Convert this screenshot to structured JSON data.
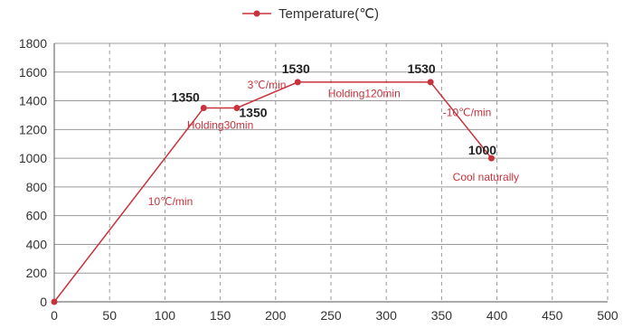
{
  "chart_data": {
    "type": "line",
    "title": "",
    "xlabel": "",
    "ylabel": "",
    "xlim": [
      0,
      500
    ],
    "ylim": [
      0,
      1800
    ],
    "xticks": [
      0,
      50,
      100,
      150,
      200,
      250,
      300,
      350,
      400,
      450,
      500
    ],
    "xtick_labels": [
      "0",
      "50",
      "100",
      "150",
      "200",
      "250",
      "300",
      "350",
      "400",
      "450",
      "500"
    ],
    "yticks": [
      0,
      200,
      400,
      600,
      800,
      1000,
      1200,
      1400,
      1600,
      1800
    ],
    "ytick_labels": [
      "0",
      "200",
      "400",
      "600",
      "800",
      "1000",
      "1200",
      "1400",
      "1600",
      "1800"
    ],
    "grid": {
      "x": "dashed",
      "y": "solid"
    },
    "legend": {
      "position": "top-center",
      "entries": [
        "Temperature(℃)"
      ]
    },
    "colors": {
      "series": "#c8323c",
      "grid": "#999999",
      "axis": "#555555"
    },
    "series": [
      {
        "name": "Temperature(℃)",
        "points": [
          {
            "x": 0,
            "y": 0
          },
          {
            "x": 135,
            "y": 1350
          },
          {
            "x": 165,
            "y": 1350
          },
          {
            "x": 220,
            "y": 1530
          },
          {
            "x": 340,
            "y": 1530
          },
          {
            "x": 395,
            "y": 1000
          }
        ]
      }
    ],
    "value_labels": [
      {
        "text": "1350",
        "x": 135,
        "y": 1350
      },
      {
        "text": "1350",
        "x": 165,
        "y": 1350
      },
      {
        "text": "1530",
        "x": 220,
        "y": 1530
      },
      {
        "text": "1530",
        "x": 340,
        "y": 1530
      },
      {
        "text": "1000",
        "x": 395,
        "y": 1000
      }
    ],
    "annotations": [
      {
        "text": "10℃/min",
        "x": 105,
        "y": 700
      },
      {
        "text": "3℃/min",
        "x": 192,
        "y": 1510
      },
      {
        "text": "Holding30min",
        "x": 150,
        "y": 1230
      },
      {
        "text": "Holding120min",
        "x": 280,
        "y": 1450
      },
      {
        "text": "-10℃/min",
        "x": 373,
        "y": 1320
      },
      {
        "text": "Cool naturally",
        "x": 390,
        "y": 870
      }
    ]
  }
}
